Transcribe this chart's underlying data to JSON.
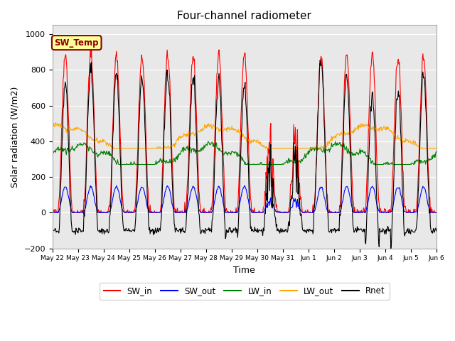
{
  "title": "Four-channel radiometer",
  "xlabel": "Time",
  "ylabel": "Solar radiation (W/m2)",
  "ylim": [
    -200,
    1050
  ],
  "annotation_text": "SW_Temp",
  "annotation_color": "#8B0000",
  "annotation_bg": "#FFFF99",
  "annotation_border": "#8B0000",
  "bg_color": "#E8E8E8",
  "n_days": 15,
  "tick_labels": [
    "May 22",
    "May 23",
    "May 24",
    "May 25",
    "May 26",
    "May 27",
    "May 28",
    "May 29",
    "May 30",
    "May 31",
    "Jun 1",
    "Jun 2",
    "Jun 3",
    "Jun 4",
    "Jun 5",
    "Jun 6"
  ],
  "yticks": [
    -200,
    0,
    200,
    400,
    600,
    800,
    1000
  ],
  "SW_in_peak": 880,
  "LW_in_base": 310,
  "LW_in_range": 60,
  "LW_out_base": 400,
  "LW_out_range": 80,
  "Rnet_peak": 780,
  "Rnet_trough": -100
}
